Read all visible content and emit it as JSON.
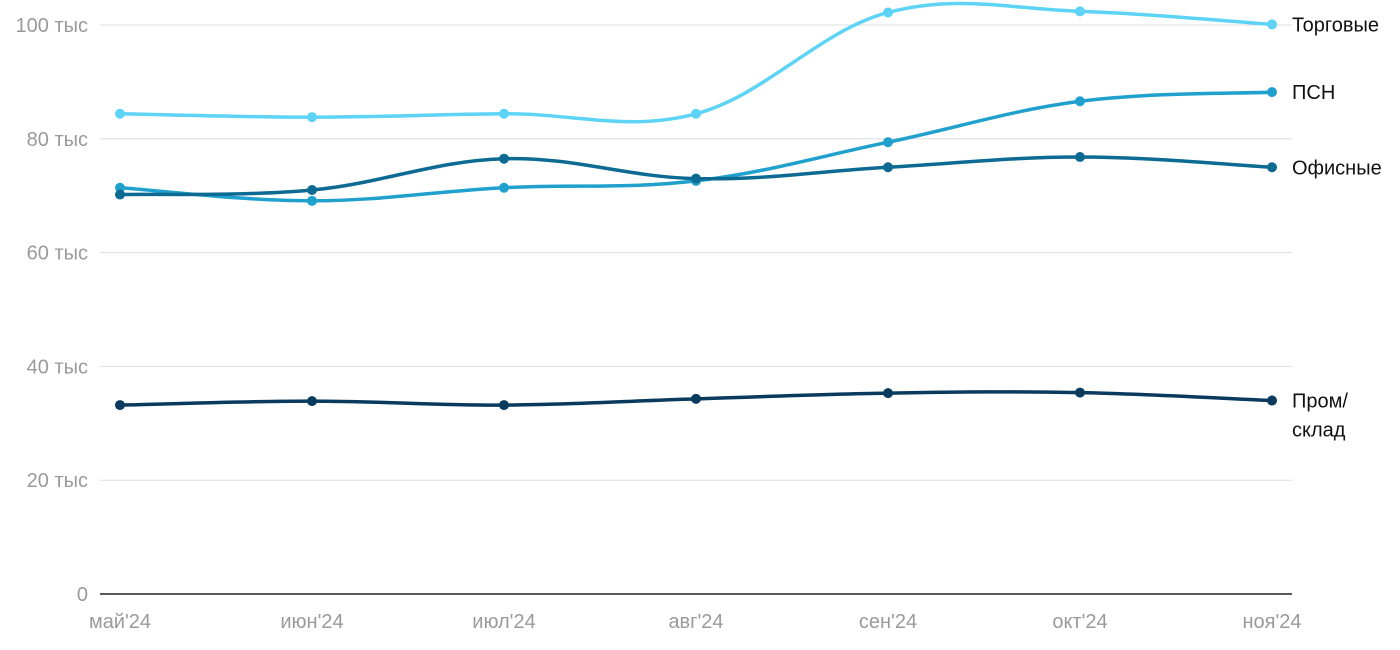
{
  "chart_data": {
    "type": "line",
    "categories": [
      "май'24",
      "июн'24",
      "июл'24",
      "авг'24",
      "сен'24",
      "окт'24",
      "ноя'24"
    ],
    "series": [
      {
        "name": "Торговые",
        "color": "#5dd3f5",
        "values": [
          84400,
          83800,
          84400,
          84400,
          102200,
          102400,
          100100
        ]
      },
      {
        "name": "ПСН",
        "color": "#20a0cc",
        "values": [
          71400,
          69100,
          71400,
          72600,
          79400,
          86600,
          88200
        ]
      },
      {
        "name": "Офисные",
        "color": "#0d6b93",
        "values": [
          70200,
          71000,
          76500,
          73000,
          75000,
          76800,
          75000
        ]
      },
      {
        "name_lines": [
          "Пром/",
          "склад"
        ],
        "color": "#0a3a5e",
        "values": [
          33200,
          33900,
          33200,
          34300,
          35300,
          35400,
          34000
        ]
      }
    ],
    "y_ticks": [
      {
        "value": 0,
        "label": "0"
      },
      {
        "value": 20000,
        "label": "20 тыс"
      },
      {
        "value": 40000,
        "label": "40 тыс"
      },
      {
        "value": 60000,
        "label": "60 тыс"
      },
      {
        "value": 80000,
        "label": "80 тыс"
      },
      {
        "value": 100000,
        "label": "100 тыс"
      }
    ],
    "ylim": [
      0,
      100000
    ],
    "grid": true,
    "legend": "labels at line ends (right)"
  }
}
